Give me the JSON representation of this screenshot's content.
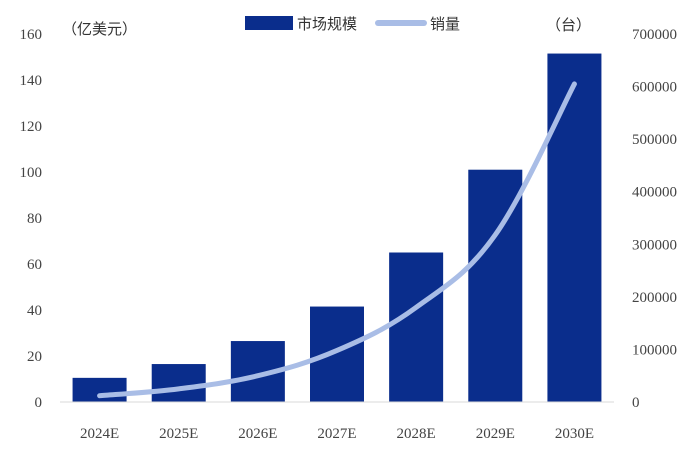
{
  "chart_data": {
    "type": "bar",
    "categories": [
      "2024E",
      "2025E",
      "2026E",
      "2027E",
      "2028E",
      "2029E",
      "2030E"
    ],
    "series": [
      {
        "name": "市场规模",
        "type": "bar",
        "axis": "left",
        "color": "#0a2d8c",
        "values": [
          10.5,
          16.5,
          26.5,
          41.5,
          65,
          101,
          151.5
        ]
      },
      {
        "name": "销量",
        "type": "line",
        "axis": "right",
        "color": "#a9bde6",
        "values": [
          12000,
          25000,
          50000,
          98000,
          180000,
          318000,
          605000
        ]
      }
    ],
    "ylabel": "（亿美元）",
    "y2label": "（台）",
    "ylim": [
      0,
      160
    ],
    "y2lim": [
      0,
      700000
    ],
    "yticks": [
      "0",
      "20",
      "40",
      "60",
      "80",
      "100",
      "120",
      "140",
      "160"
    ],
    "y2ticks": [
      "0",
      "100000",
      "200000",
      "300000",
      "400000",
      "500000",
      "600000",
      "700000"
    ],
    "legend_position": "top-center",
    "grid": false
  }
}
